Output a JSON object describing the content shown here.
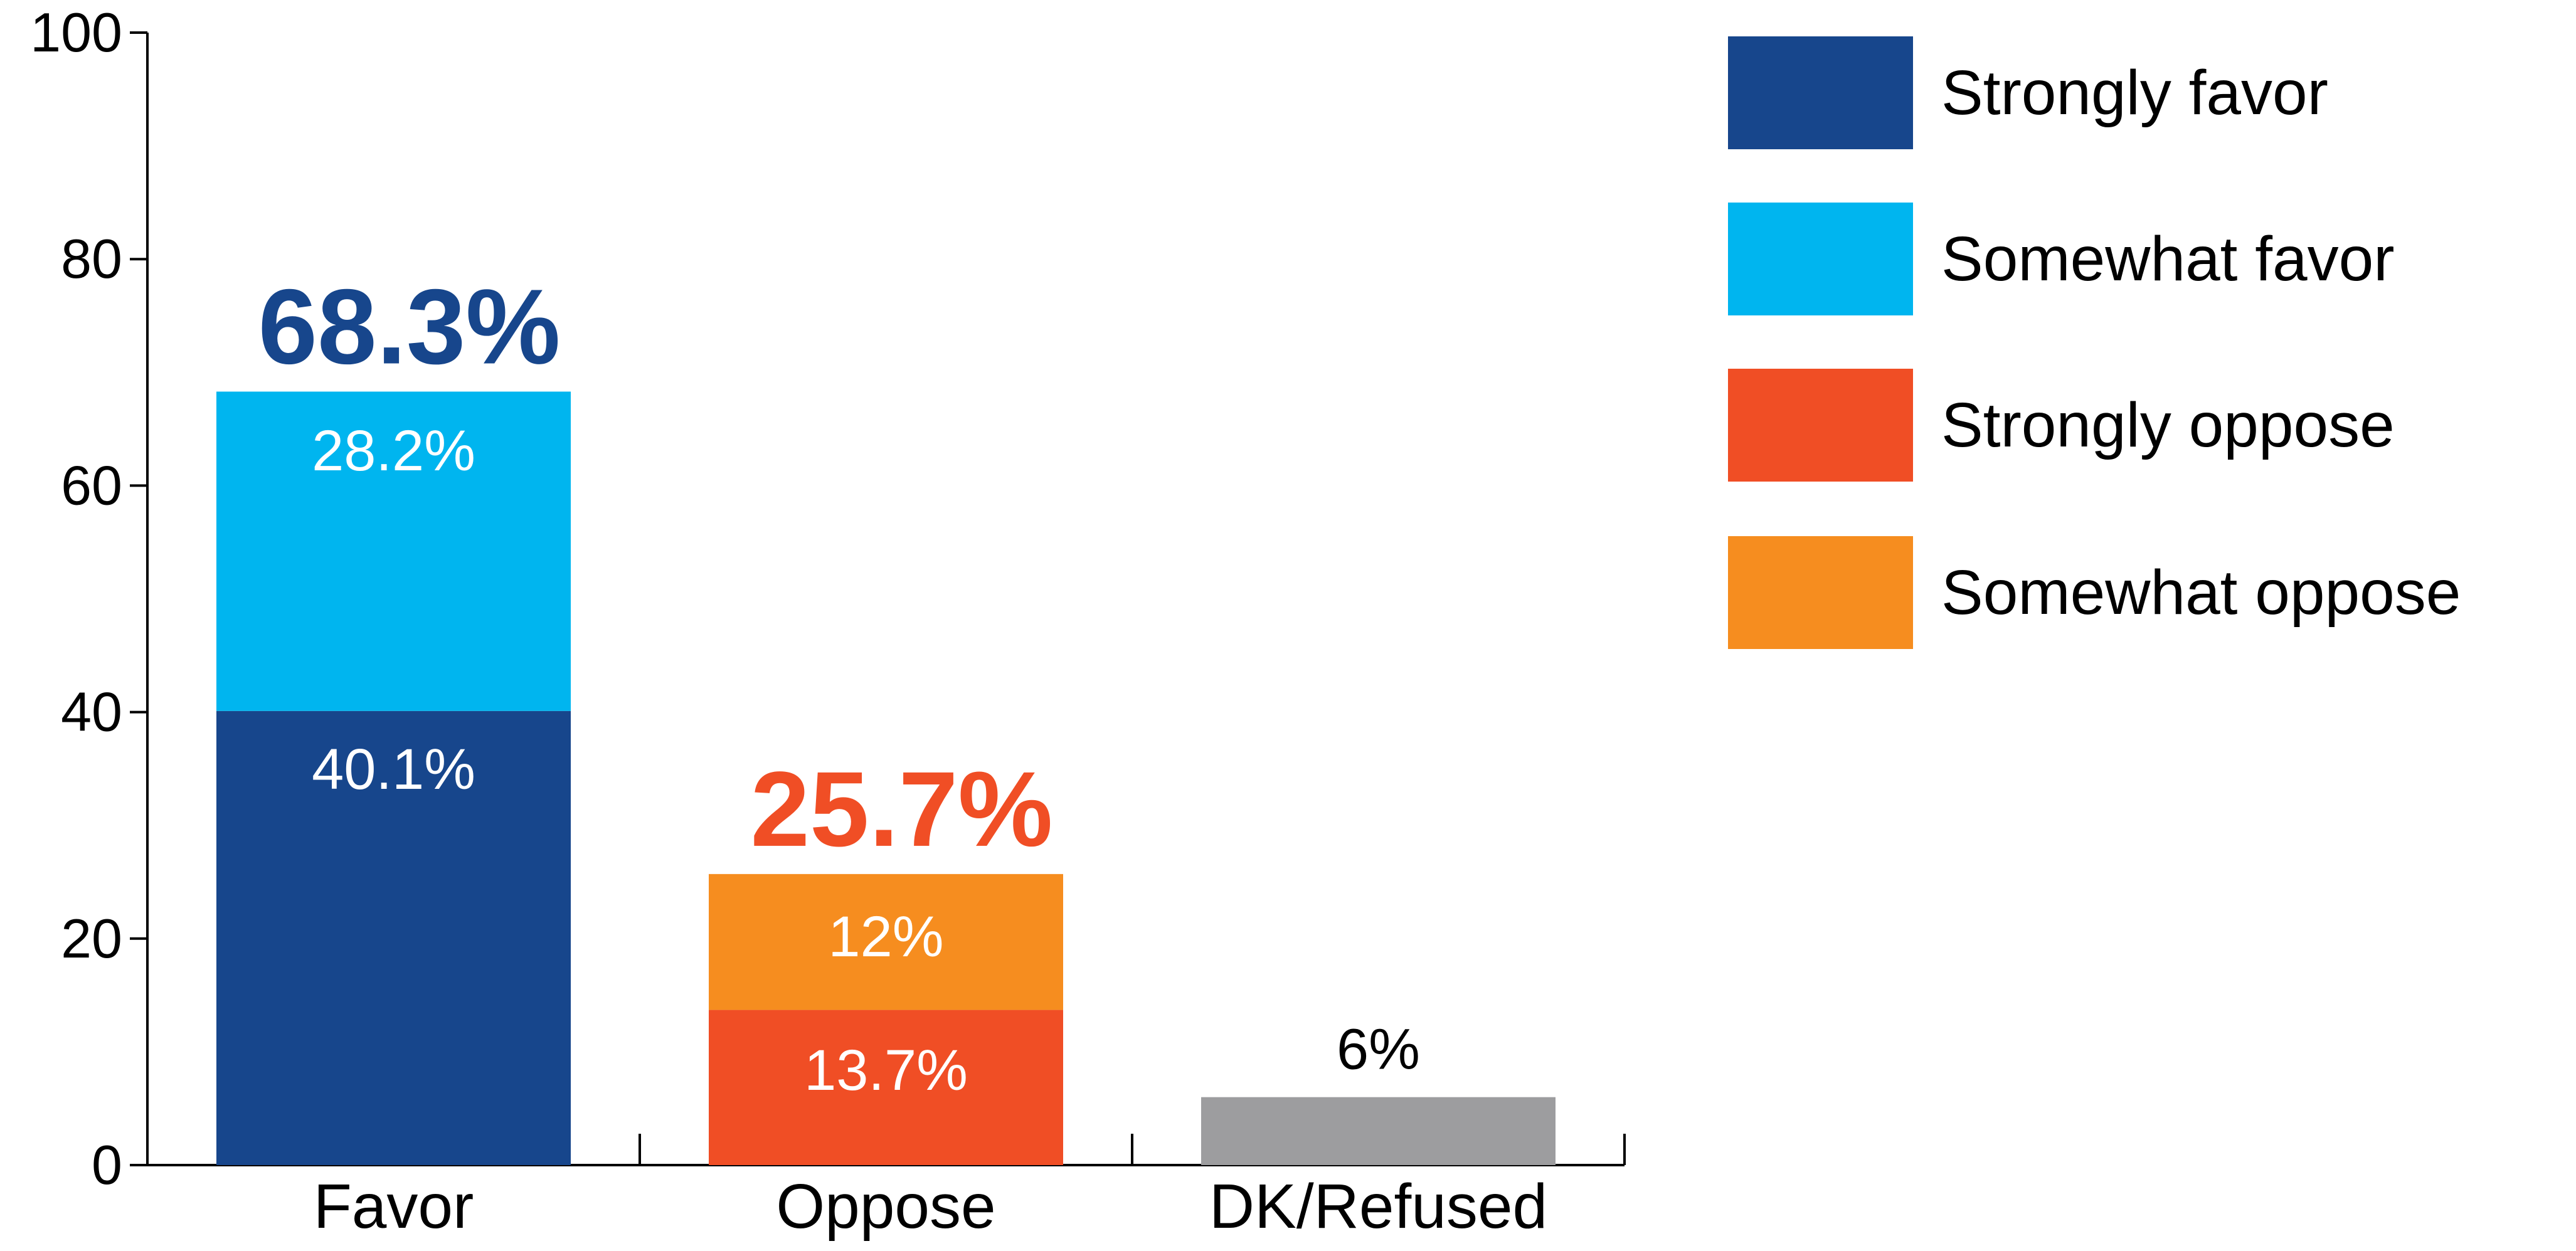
{
  "chart_data": {
    "type": "bar",
    "stacked": true,
    "title": "",
    "xlabel": "",
    "ylabel": "",
    "ylim": [
      0,
      100
    ],
    "y_ticks": [
      "0",
      "20",
      "40",
      "60",
      "80",
      "100"
    ],
    "categories": [
      "Favor",
      "Oppose",
      "DK/Refused"
    ],
    "bars": [
      {
        "category": "Favor",
        "total": 68.3,
        "total_label": "68.3%",
        "total_color": "#17468C",
        "segments": [
          {
            "series": "Strongly favor",
            "value": 40.1,
            "label": "40.1%",
            "color": "#17468C"
          },
          {
            "series": "Somewhat favor",
            "value": 28.2,
            "label": "28.2%",
            "color": "#00B5EF"
          }
        ]
      },
      {
        "category": "Oppose",
        "total": 25.7,
        "total_label": "25.7%",
        "total_color": "#F04E25",
        "segments": [
          {
            "series": "Strongly oppose",
            "value": 13.7,
            "label": "13.7%",
            "color": "#F04E25"
          },
          {
            "series": "Somewhat oppose",
            "value": 12,
            "label": "12%",
            "color": "#F68D1F"
          }
        ]
      },
      {
        "category": "DK/Refused",
        "total": 6,
        "total_label": "6%",
        "total_color": "#000000",
        "segments": [
          {
            "series": "DK/Refused",
            "value": 6,
            "label": "",
            "color": "#9D9D9F"
          }
        ]
      }
    ],
    "legend": {
      "placement": "top-right",
      "items": [
        {
          "label": "Strongly favor",
          "color": "#17468C"
        },
        {
          "label": "Somewhat favor",
          "color": "#00B5EF"
        },
        {
          "label": "Strongly oppose",
          "color": "#F04E25"
        },
        {
          "label": "Somewhat oppose",
          "color": "#F68D1F"
        }
      ]
    },
    "grid": false
  }
}
